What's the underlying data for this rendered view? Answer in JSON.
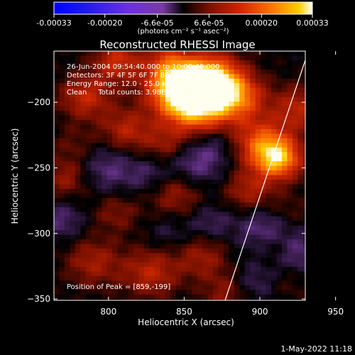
{
  "colorbar": {
    "tick_labels": [
      "-0.00033",
      "-0.00020",
      "-6.6e-05",
      "6.6e-05",
      "0.00020",
      "0.00033"
    ],
    "ticks": [
      -0.00033,
      -0.0002,
      -6.6e-05,
      6.6e-05,
      0.0002,
      0.00033
    ],
    "range": [
      -0.00033,
      0.00033
    ],
    "unit_label": "(photons cm⁻² s⁻¹ asec⁻²)"
  },
  "footer": {
    "timestamp": "1-May-2022 11:18"
  },
  "chart_data": {
    "type": "heatmap",
    "title": "Reconstructed RHESSI Image",
    "xlabel": "Heliocentric X (arcsec)",
    "ylabel": "Heliocentric Y (arcsec)",
    "xlim": [
      764,
      930
    ],
    "ylim": [
      -351,
      -161
    ],
    "xticks": [
      800,
      850,
      900,
      950
    ],
    "yticks": [
      -350,
      -300,
      -250,
      -200
    ],
    "annotations": [
      "26-Jun-2004 09:54:40.000 to 10:00:40.000",
      "Detectors: 3F 4F 5F 6F 7F 8F, Att 0",
      "Energy Range: 12.0 - 25.0 keV",
      "Clean     Total counts: 3.98E+05"
    ],
    "peak_label": "Position of Peak = [859,-199]",
    "peak_position": [
      859,
      -199
    ],
    "limb_line": [
      [
        877,
        -351
      ],
      [
        932,
        -161
      ]
    ],
    "blobs": [
      {
        "x": 859,
        "y": -199,
        "v": 0.00033,
        "s": 16
      },
      {
        "x": 845,
        "y": -186,
        "v": 0.00024,
        "s": 14
      },
      {
        "x": 870,
        "y": -182,
        "v": 0.00021,
        "s": 13
      },
      {
        "x": 887,
        "y": -196,
        "v": 0.00016,
        "s": 12
      },
      {
        "x": 912,
        "y": -243,
        "v": 0.00026,
        "s": 11
      },
      {
        "x": 900,
        "y": -230,
        "v": 0.00016,
        "s": 13
      },
      {
        "x": 925,
        "y": -205,
        "v": 0.00012,
        "s": 12
      },
      {
        "x": 893,
        "y": -268,
        "v": 0.00011,
        "s": 11
      },
      {
        "x": 785,
        "y": -196,
        "v": 0.00013,
        "s": 12
      },
      {
        "x": 772,
        "y": -258,
        "v": 9e-05,
        "s": 11
      },
      {
        "x": 812,
        "y": -222,
        "v": 0.00012,
        "s": 12
      },
      {
        "x": 838,
        "y": -232,
        "v": 8e-05,
        "s": 10
      },
      {
        "x": 845,
        "y": -270,
        "v": 9e-05,
        "s": 12
      },
      {
        "x": 805,
        "y": -284,
        "v": 7e-05,
        "s": 11
      },
      {
        "x": 790,
        "y": -322,
        "v": 0.0001,
        "s": 13
      },
      {
        "x": 828,
        "y": -330,
        "v": 0.00012,
        "s": 13
      },
      {
        "x": 862,
        "y": -318,
        "v": 9e-05,
        "s": 12
      },
      {
        "x": 878,
        "y": -345,
        "v": 8e-05,
        "s": 11
      },
      {
        "x": 910,
        "y": -310,
        "v": 7e-05,
        "s": 10
      },
      {
        "x": 918,
        "y": -284,
        "v": 6e-05,
        "s": 10
      },
      {
        "x": 922,
        "y": -335,
        "v": 4e-05,
        "s": 10
      },
      {
        "x": 806,
        "y": -169,
        "v": 0.00014,
        "s": 11
      },
      {
        "x": 838,
        "y": -168,
        "v": 8e-05,
        "s": 10
      },
      {
        "x": 778,
        "y": -233,
        "v": 5e-05,
        "s": 10
      },
      {
        "x": 800,
        "y": -250,
        "v": -8e-05,
        "s": 14
      },
      {
        "x": 827,
        "y": -255,
        "v": -5e-05,
        "s": 10
      },
      {
        "x": 858,
        "y": -246,
        "v": -9e-05,
        "s": 13
      },
      {
        "x": 867,
        "y": -292,
        "v": -6e-05,
        "s": 10
      },
      {
        "x": 905,
        "y": -297,
        "v": -0.0001,
        "s": 14
      },
      {
        "x": 925,
        "y": -317,
        "v": -8e-05,
        "s": 12
      },
      {
        "x": 872,
        "y": -230,
        "v": -5e-05,
        "s": 10
      },
      {
        "x": 769,
        "y": -290,
        "v": -7e-05,
        "s": 11
      },
      {
        "x": 840,
        "y": -300,
        "v": -4e-05,
        "s": 10
      },
      {
        "x": 895,
        "y": -338,
        "v": -6e-05,
        "s": 10
      }
    ]
  }
}
